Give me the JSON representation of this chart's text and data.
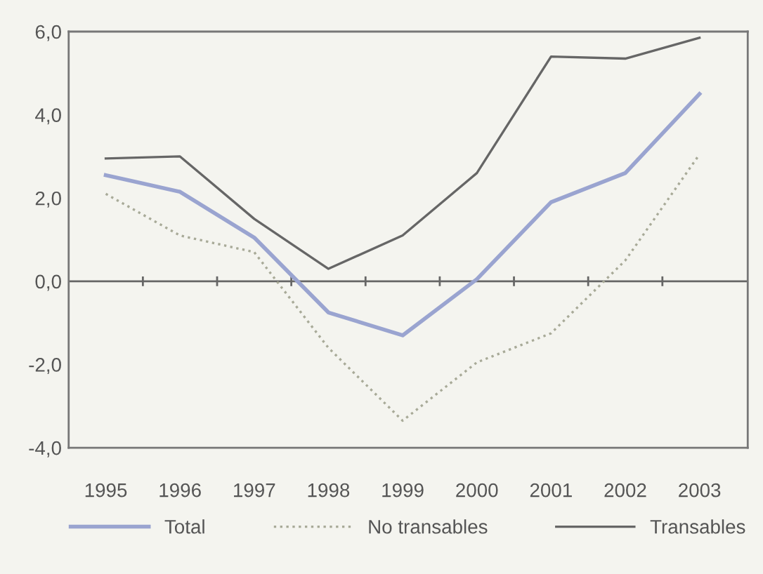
{
  "chart_data": {
    "type": "line",
    "categories": [
      "1995",
      "1996",
      "1997",
      "1998",
      "1999",
      "2000",
      "2001",
      "2002",
      "2003"
    ],
    "series": [
      {
        "name": "Total",
        "color": "#9aa4d0",
        "line_style": "solid",
        "values": [
          2.55,
          2.15,
          1.05,
          -0.75,
          -1.3,
          0.05,
          1.9,
          2.6,
          4.5
        ]
      },
      {
        "name": "No transables",
        "color": "#a8aa98",
        "line_style": "dotted",
        "values": [
          2.1,
          1.1,
          0.7,
          -1.6,
          -3.35,
          -1.95,
          -1.25,
          0.5,
          3.05
        ]
      },
      {
        "name": "Transables",
        "color": "#666666",
        "line_style": "solid",
        "values": [
          2.95,
          3.0,
          1.5,
          0.3,
          1.1,
          2.6,
          5.4,
          5.35,
          5.85
        ]
      }
    ],
    "ylim": [
      -4,
      6
    ],
    "yticks": [
      {
        "value": -4,
        "label": "-4,0"
      },
      {
        "value": -2,
        "label": "-2,0"
      },
      {
        "value": 0,
        "label": "0,0"
      },
      {
        "value": 2,
        "label": "2,0"
      },
      {
        "value": 4,
        "label": "4,0"
      },
      {
        "value": 6,
        "label": "6,0"
      }
    ],
    "ref_lines": [
      {
        "axis": "y",
        "value": 0,
        "color": "#666666"
      }
    ],
    "grid": false,
    "legend": "bottom",
    "marker": "none"
  }
}
